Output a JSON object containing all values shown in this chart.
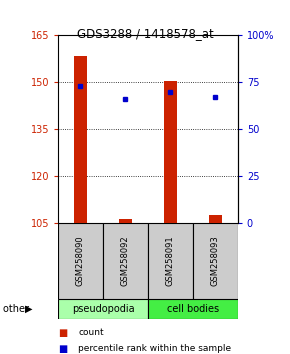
{
  "title": "GDS3288 / 1418578_at",
  "samples": [
    "GSM258090",
    "GSM258092",
    "GSM258091",
    "GSM258093"
  ],
  "count_values": [
    158.5,
    106.2,
    150.5,
    107.5
  ],
  "percentile_values": [
    73,
    66,
    70,
    67
  ],
  "ylim_left": [
    105,
    165
  ],
  "ylim_right": [
    0,
    100
  ],
  "yticks_left": [
    105,
    120,
    135,
    150,
    165
  ],
  "yticks_right": [
    0,
    25,
    50,
    75,
    100
  ],
  "ytick_labels_right": [
    "0",
    "25",
    "50",
    "75",
    "100%"
  ],
  "bar_color": "#cc2200",
  "dot_color": "#0000cc",
  "bar_width": 0.3,
  "group_colors": [
    "#aaffaa",
    "#44ee44"
  ],
  "group_labels": [
    "pseudopodia",
    "cell bodies"
  ],
  "group_ranges": [
    [
      0,
      1
    ],
    [
      2,
      3
    ]
  ],
  "background_color": "#ffffff",
  "left_tick_color": "#cc2200",
  "right_tick_color": "#0000cc",
  "label_bg": "#cccccc"
}
